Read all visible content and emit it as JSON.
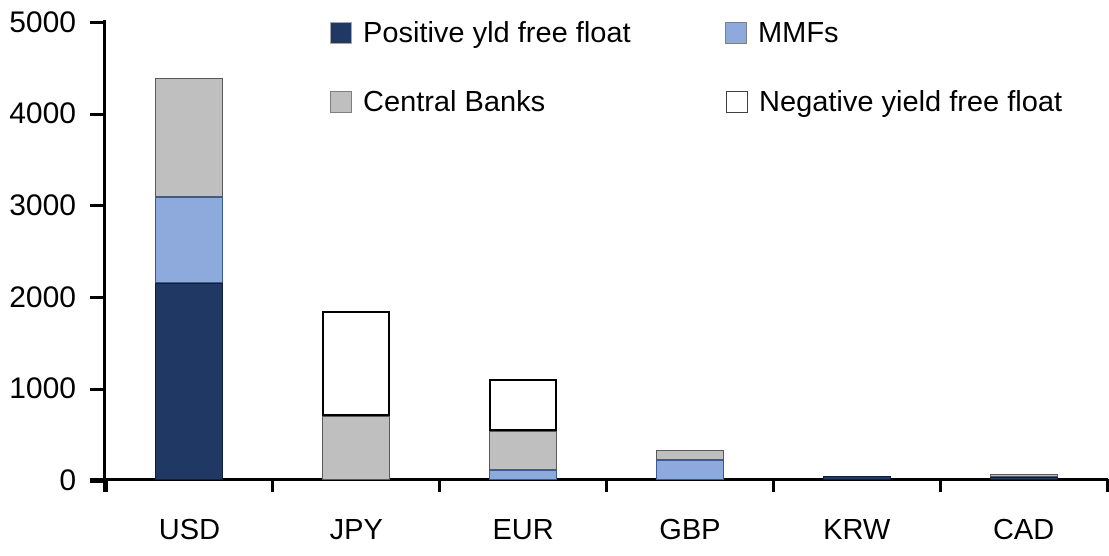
{
  "chart_data": {
    "type": "bar",
    "stacked": true,
    "title": "",
    "xlabel": "",
    "ylabel": "",
    "categories": [
      "USD",
      "JPY",
      "EUR",
      "GBP",
      "KRW",
      "CAD"
    ],
    "series": [
      {
        "name": "Positive yld free float",
        "color": "#1F3864",
        "segment_border": "#10203C",
        "swatch_border": "#A6A6A6",
        "values": [
          2150,
          0,
          0,
          0,
          45,
          30
        ]
      },
      {
        "name": "MMFs",
        "color": "#8EA9DB",
        "segment_border": "#3A5A94",
        "swatch_border": "#7F7F7F",
        "values": [
          940,
          0,
          110,
          215,
          0,
          0
        ]
      },
      {
        "name": "Central Banks",
        "color": "#BFBFBF",
        "segment_border": "#595959",
        "swatch_border": "#7F7F7F",
        "values": [
          1290,
          700,
          425,
          115,
          0,
          30
        ]
      },
      {
        "name": "Negative yield free float",
        "color": "#FFFFFF",
        "segment_border": "#000000",
        "swatch_border": "#404040",
        "values": [
          0,
          1140,
          570,
          0,
          0,
          0
        ]
      }
    ],
    "totals": [
      4380,
      1840,
      1105,
      330,
      45,
      60
    ],
    "ylim": [
      0,
      5000
    ],
    "yticks": [
      0,
      1000,
      2000,
      3000,
      4000,
      5000
    ],
    "layout": {
      "legend_position": "top",
      "grid": false,
      "axis_color": "#000000",
      "background": "#FFFFFF"
    }
  }
}
